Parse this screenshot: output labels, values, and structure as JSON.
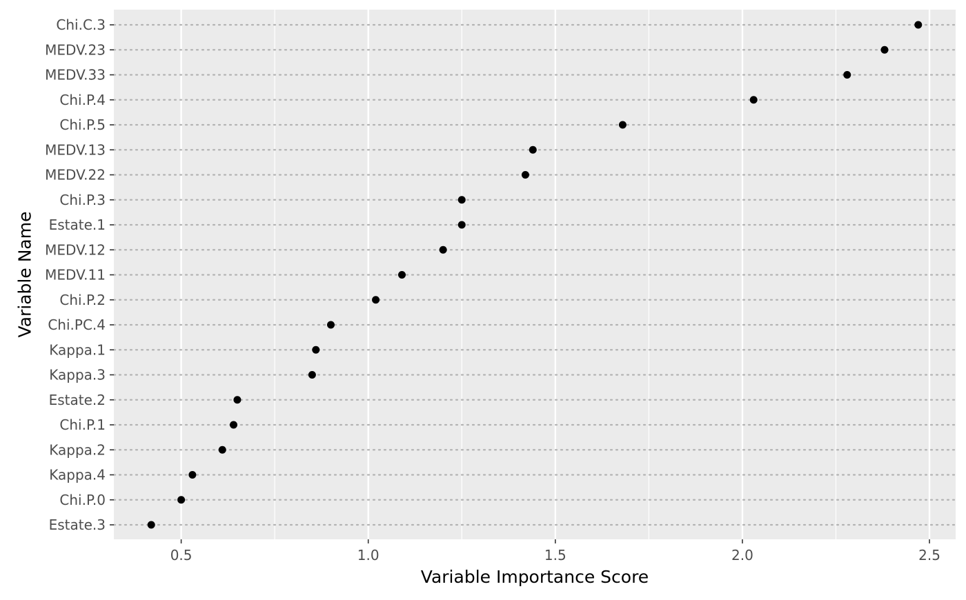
{
  "chart_data": {
    "type": "scatter",
    "title": "",
    "xlabel": "Variable Importance Score",
    "ylabel": "Variable Name",
    "xlim": [
      0.32,
      2.57
    ],
    "x_ticks": [
      0.5,
      1.0,
      1.5,
      2.0,
      2.5
    ],
    "x_tick_labels": [
      "0.5",
      "1.0",
      "1.5",
      "2.0",
      "2.5"
    ],
    "x_minor_ticks": [
      0.75,
      1.25,
      1.75,
      2.25
    ],
    "grid": true,
    "legend": "none",
    "colors": {
      "panel_background": "#ebebeb",
      "major_grid": "#ffffff",
      "minor_grid": "#f5f5f5",
      "row_guide": "#b3b3b3",
      "point": "#000000",
      "tick_label": "#4d4d4d",
      "axis_title": "#000000"
    },
    "categories": [
      "Chi.C.3",
      "MEDV.23",
      "MEDV.33",
      "Chi.P.4",
      "Chi.P.5",
      "MEDV.13",
      "MEDV.22",
      "Chi.P.3",
      "Estate.1",
      "MEDV.12",
      "MEDV.11",
      "Chi.P.2",
      "Chi.PC.4",
      "Kappa.1",
      "Kappa.3",
      "Estate.2",
      "Chi.P.1",
      "Kappa.2",
      "Kappa.4",
      "Chi.P.0",
      "Estate.3"
    ],
    "values": [
      2.47,
      2.38,
      2.28,
      2.03,
      1.68,
      1.44,
      1.42,
      1.25,
      1.25,
      1.2,
      1.09,
      1.02,
      0.9,
      0.86,
      0.85,
      0.65,
      0.64,
      0.61,
      0.53,
      0.5,
      0.42
    ]
  }
}
